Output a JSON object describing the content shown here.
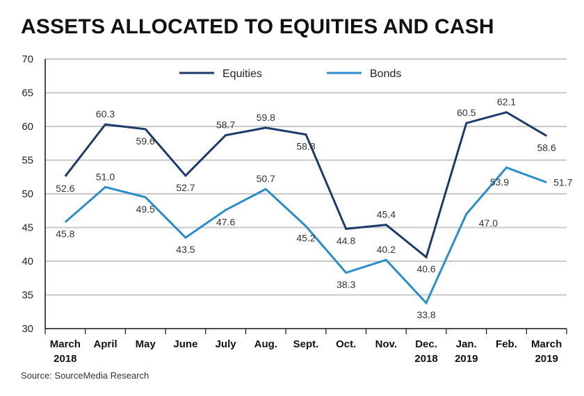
{
  "title": "ASSETS ALLOCATED TO EQUITIES AND CASH",
  "source": "Source: SourceMedia Research",
  "colors": {
    "equities": "#1b3a6b",
    "bonds": "#2b8ccc",
    "grid": "#c8c8c8",
    "axis": "#111111"
  },
  "chart_data": {
    "type": "line",
    "title": "ASSETS ALLOCATED TO EQUITIES AND CASH",
    "xlabel": "",
    "ylabel": "",
    "categories": [
      [
        "March",
        "2018"
      ],
      [
        "April"
      ],
      [
        "May"
      ],
      [
        "June"
      ],
      [
        "July"
      ],
      [
        "Aug."
      ],
      [
        "Sept."
      ],
      [
        "Oct."
      ],
      [
        "Nov."
      ],
      [
        "Dec.",
        "2018"
      ],
      [
        "Jan.",
        "2019"
      ],
      [
        "Feb."
      ],
      [
        "March",
        "2019"
      ]
    ],
    "ylim": [
      30,
      70
    ],
    "yticks": [
      30,
      35,
      40,
      45,
      50,
      55,
      60,
      65,
      70
    ],
    "grid": true,
    "legend": "top-center",
    "series": [
      {
        "name": "Equities",
        "values": [
          52.6,
          60.3,
          59.6,
          52.7,
          58.7,
          59.8,
          58.8,
          44.8,
          45.4,
          40.6,
          60.5,
          62.1,
          58.6
        ],
        "labels": [
          "52.6",
          "60.3",
          "59.6",
          "52.7",
          "58.7",
          "59.8",
          "58.8",
          "44.8",
          "45.4",
          "40.6",
          "60.5",
          "62.1",
          "58.6"
        ]
      },
      {
        "name": "Bonds",
        "values": [
          45.8,
          51.0,
          49.5,
          43.5,
          47.6,
          50.7,
          45.2,
          38.3,
          40.2,
          33.8,
          47.0,
          53.9,
          51.7
        ],
        "labels": [
          "45.8",
          "51.0",
          "49.5",
          "43.5",
          "47.6",
          "50.7",
          "45.2",
          "38.3",
          "40.2",
          "33.8",
          "47.0",
          "53.9",
          "51.7"
        ]
      }
    ]
  }
}
